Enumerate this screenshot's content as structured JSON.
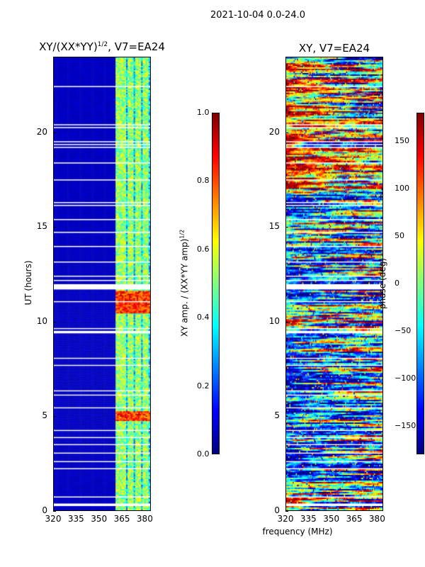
{
  "figure_title": "2021-10-04 0.0-24.0",
  "chart_data": [
    {
      "type": "heatmap",
      "title": "XY/(XX*YY)^1/2, V7=EA24",
      "title_base": "XY/(XX*YY)",
      "title_exp": "1/2",
      "title_suffix": ", V7=EA24",
      "xlabel": "",
      "ylabel": "UT (hours)",
      "x_ticks": [
        "320",
        "335",
        "350",
        "365",
        "380"
      ],
      "x_tick_values": [
        320,
        335,
        350,
        365,
        380
      ],
      "y_ticks": [
        "0",
        "5",
        "10",
        "15",
        "20"
      ],
      "y_tick_values": [
        0,
        5,
        10,
        15,
        20
      ],
      "xlim": [
        320,
        384
      ],
      "ylim": [
        0,
        24
      ],
      "colorbar": {
        "label": "XY amp. / (XX*YY amp)^1/2",
        "label_base": "XY amp. / (XX*YY amp)",
        "label_exp": "1/2",
        "ticks": [
          "0.0",
          "0.2",
          "0.4",
          "0.6",
          "0.8",
          "1.0"
        ],
        "tick_values": [
          0.0,
          0.2,
          0.4,
          0.6,
          0.8,
          1.0
        ],
        "range": [
          0,
          1
        ],
        "colormap": "jet"
      },
      "features": {
        "low_band_value": 0.05,
        "active_band_start_mhz": 361,
        "active_columns_mhz": [
          362,
          366,
          371,
          376,
          381
        ],
        "bright_spot_hours": [
          5,
          11
        ]
      }
    },
    {
      "type": "heatmap",
      "title": "XY, V7=EA24",
      "xlabel": "frequency (MHz)",
      "ylabel": "",
      "x_ticks": [
        "320",
        "335",
        "350",
        "365",
        "380"
      ],
      "x_tick_values": [
        320,
        335,
        350,
        365,
        380
      ],
      "y_ticks": [
        "0",
        "5",
        "10",
        "15",
        "20"
      ],
      "y_tick_values": [
        0,
        5,
        10,
        15,
        20
      ],
      "xlim": [
        320,
        384
      ],
      "ylim": [
        0,
        24
      ],
      "colorbar": {
        "label": "phase (deg)",
        "ticks": [
          "−150",
          "−100",
          "−50",
          "0",
          "50",
          "100",
          "150"
        ],
        "tick_values": [
          -150,
          -100,
          -50,
          0,
          50,
          100,
          150
        ],
        "range": [
          -180,
          180
        ],
        "colormap": "jet"
      }
    }
  ],
  "colors": {
    "jet_dark_blue": "#00008f",
    "background": "#ffffff"
  }
}
